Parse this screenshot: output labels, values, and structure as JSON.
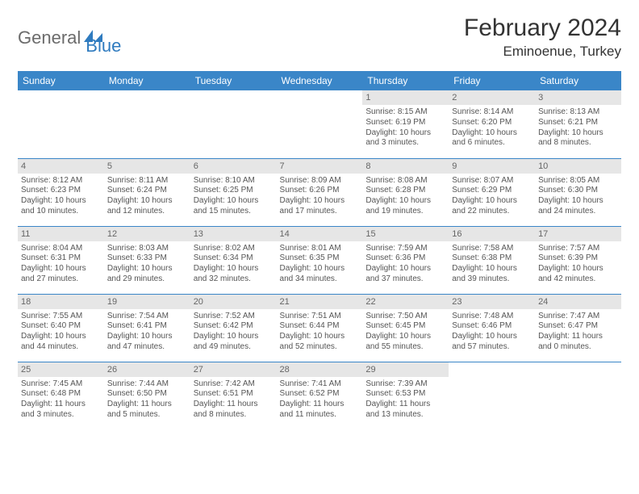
{
  "logo": {
    "text1": "General",
    "text2": "Blue",
    "color_general": "#6b6b6b",
    "color_blue": "#2f7bbf",
    "shape_color": "#2f7bbf"
  },
  "header": {
    "title": "February 2024",
    "location": "Eminoenue, Turkey"
  },
  "style": {
    "header_bg": "#3a86c8",
    "header_fg": "#ffffff",
    "daynum_bg": "#e6e6e6",
    "daynum_fg": "#666666",
    "cell_border": "#3a86c8",
    "body_text": "#555555",
    "title_fontsize": 30,
    "location_fontsize": 17,
    "th_fontsize": 12,
    "cell_fontsize": 10
  },
  "weekdays": [
    "Sunday",
    "Monday",
    "Tuesday",
    "Wednesday",
    "Thursday",
    "Friday",
    "Saturday"
  ],
  "weeks": [
    [
      {
        "empty": true
      },
      {
        "empty": true
      },
      {
        "empty": true
      },
      {
        "empty": true
      },
      {
        "day": "1",
        "sunrise": "Sunrise: 8:15 AM",
        "sunset": "Sunset: 6:19 PM",
        "daylight1": "Daylight: 10 hours",
        "daylight2": "and 3 minutes."
      },
      {
        "day": "2",
        "sunrise": "Sunrise: 8:14 AM",
        "sunset": "Sunset: 6:20 PM",
        "daylight1": "Daylight: 10 hours",
        "daylight2": "and 6 minutes."
      },
      {
        "day": "3",
        "sunrise": "Sunrise: 8:13 AM",
        "sunset": "Sunset: 6:21 PM",
        "daylight1": "Daylight: 10 hours",
        "daylight2": "and 8 minutes."
      }
    ],
    [
      {
        "day": "4",
        "sunrise": "Sunrise: 8:12 AM",
        "sunset": "Sunset: 6:23 PM",
        "daylight1": "Daylight: 10 hours",
        "daylight2": "and 10 minutes."
      },
      {
        "day": "5",
        "sunrise": "Sunrise: 8:11 AM",
        "sunset": "Sunset: 6:24 PM",
        "daylight1": "Daylight: 10 hours",
        "daylight2": "and 12 minutes."
      },
      {
        "day": "6",
        "sunrise": "Sunrise: 8:10 AM",
        "sunset": "Sunset: 6:25 PM",
        "daylight1": "Daylight: 10 hours",
        "daylight2": "and 15 minutes."
      },
      {
        "day": "7",
        "sunrise": "Sunrise: 8:09 AM",
        "sunset": "Sunset: 6:26 PM",
        "daylight1": "Daylight: 10 hours",
        "daylight2": "and 17 minutes."
      },
      {
        "day": "8",
        "sunrise": "Sunrise: 8:08 AM",
        "sunset": "Sunset: 6:28 PM",
        "daylight1": "Daylight: 10 hours",
        "daylight2": "and 19 minutes."
      },
      {
        "day": "9",
        "sunrise": "Sunrise: 8:07 AM",
        "sunset": "Sunset: 6:29 PM",
        "daylight1": "Daylight: 10 hours",
        "daylight2": "and 22 minutes."
      },
      {
        "day": "10",
        "sunrise": "Sunrise: 8:05 AM",
        "sunset": "Sunset: 6:30 PM",
        "daylight1": "Daylight: 10 hours",
        "daylight2": "and 24 minutes."
      }
    ],
    [
      {
        "day": "11",
        "sunrise": "Sunrise: 8:04 AM",
        "sunset": "Sunset: 6:31 PM",
        "daylight1": "Daylight: 10 hours",
        "daylight2": "and 27 minutes."
      },
      {
        "day": "12",
        "sunrise": "Sunrise: 8:03 AM",
        "sunset": "Sunset: 6:33 PM",
        "daylight1": "Daylight: 10 hours",
        "daylight2": "and 29 minutes."
      },
      {
        "day": "13",
        "sunrise": "Sunrise: 8:02 AM",
        "sunset": "Sunset: 6:34 PM",
        "daylight1": "Daylight: 10 hours",
        "daylight2": "and 32 minutes."
      },
      {
        "day": "14",
        "sunrise": "Sunrise: 8:01 AM",
        "sunset": "Sunset: 6:35 PM",
        "daylight1": "Daylight: 10 hours",
        "daylight2": "and 34 minutes."
      },
      {
        "day": "15",
        "sunrise": "Sunrise: 7:59 AM",
        "sunset": "Sunset: 6:36 PM",
        "daylight1": "Daylight: 10 hours",
        "daylight2": "and 37 minutes."
      },
      {
        "day": "16",
        "sunrise": "Sunrise: 7:58 AM",
        "sunset": "Sunset: 6:38 PM",
        "daylight1": "Daylight: 10 hours",
        "daylight2": "and 39 minutes."
      },
      {
        "day": "17",
        "sunrise": "Sunrise: 7:57 AM",
        "sunset": "Sunset: 6:39 PM",
        "daylight1": "Daylight: 10 hours",
        "daylight2": "and 42 minutes."
      }
    ],
    [
      {
        "day": "18",
        "sunrise": "Sunrise: 7:55 AM",
        "sunset": "Sunset: 6:40 PM",
        "daylight1": "Daylight: 10 hours",
        "daylight2": "and 44 minutes."
      },
      {
        "day": "19",
        "sunrise": "Sunrise: 7:54 AM",
        "sunset": "Sunset: 6:41 PM",
        "daylight1": "Daylight: 10 hours",
        "daylight2": "and 47 minutes."
      },
      {
        "day": "20",
        "sunrise": "Sunrise: 7:52 AM",
        "sunset": "Sunset: 6:42 PM",
        "daylight1": "Daylight: 10 hours",
        "daylight2": "and 49 minutes."
      },
      {
        "day": "21",
        "sunrise": "Sunrise: 7:51 AM",
        "sunset": "Sunset: 6:44 PM",
        "daylight1": "Daylight: 10 hours",
        "daylight2": "and 52 minutes."
      },
      {
        "day": "22",
        "sunrise": "Sunrise: 7:50 AM",
        "sunset": "Sunset: 6:45 PM",
        "daylight1": "Daylight: 10 hours",
        "daylight2": "and 55 minutes."
      },
      {
        "day": "23",
        "sunrise": "Sunrise: 7:48 AM",
        "sunset": "Sunset: 6:46 PM",
        "daylight1": "Daylight: 10 hours",
        "daylight2": "and 57 minutes."
      },
      {
        "day": "24",
        "sunrise": "Sunrise: 7:47 AM",
        "sunset": "Sunset: 6:47 PM",
        "daylight1": "Daylight: 11 hours",
        "daylight2": "and 0 minutes."
      }
    ],
    [
      {
        "day": "25",
        "sunrise": "Sunrise: 7:45 AM",
        "sunset": "Sunset: 6:48 PM",
        "daylight1": "Daylight: 11 hours",
        "daylight2": "and 3 minutes."
      },
      {
        "day": "26",
        "sunrise": "Sunrise: 7:44 AM",
        "sunset": "Sunset: 6:50 PM",
        "daylight1": "Daylight: 11 hours",
        "daylight2": "and 5 minutes."
      },
      {
        "day": "27",
        "sunrise": "Sunrise: 7:42 AM",
        "sunset": "Sunset: 6:51 PM",
        "daylight1": "Daylight: 11 hours",
        "daylight2": "and 8 minutes."
      },
      {
        "day": "28",
        "sunrise": "Sunrise: 7:41 AM",
        "sunset": "Sunset: 6:52 PM",
        "daylight1": "Daylight: 11 hours",
        "daylight2": "and 11 minutes."
      },
      {
        "day": "29",
        "sunrise": "Sunrise: 7:39 AM",
        "sunset": "Sunset: 6:53 PM",
        "daylight1": "Daylight: 11 hours",
        "daylight2": "and 13 minutes."
      },
      {
        "empty": true
      },
      {
        "empty": true
      }
    ]
  ]
}
